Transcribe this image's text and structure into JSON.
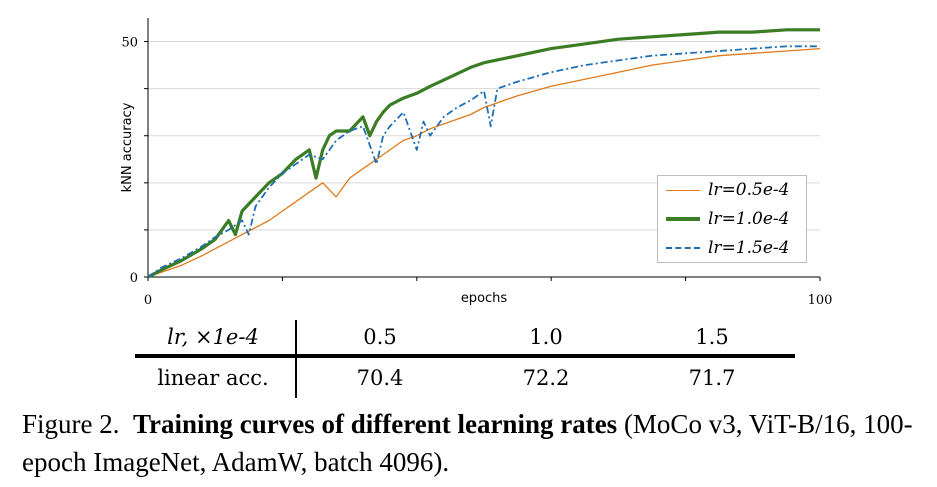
{
  "chart_data": {
    "type": "line",
    "ylabel": "kNN accuracy",
    "xlabel": "epochs",
    "x_ticks": [
      "0",
      "100"
    ],
    "y_ticks": [
      "0",
      "50"
    ],
    "xlim": [
      0,
      100
    ],
    "ylim": [
      0,
      55
    ],
    "grid": true,
    "legend_position": "lower-right",
    "series": [
      {
        "name": "lr=0.5e-4",
        "color": "#e07a1c",
        "style": "solid",
        "x": [
          0,
          2,
          5,
          8,
          10,
          12,
          14,
          16,
          18,
          20,
          22,
          24,
          26,
          28,
          30,
          32,
          34,
          36,
          38,
          40,
          42,
          45,
          48,
          50,
          55,
          60,
          65,
          70,
          75,
          80,
          85,
          90,
          95,
          100
        ],
        "y": [
          0,
          1,
          2.5,
          4.5,
          6,
          7.5,
          9,
          10.5,
          12,
          14,
          16,
          18,
          20,
          17,
          21,
          23,
          25,
          27,
          29,
          30,
          31.5,
          33,
          34.5,
          36,
          38.5,
          40.5,
          42,
          43.5,
          45,
          46,
          47,
          47.5,
          48,
          48.5
        ]
      },
      {
        "name": "lr=1.0e-4",
        "color": "#3a7d24",
        "style": "solid-thick",
        "x": [
          0,
          2,
          5,
          8,
          10,
          12,
          13,
          14,
          16,
          18,
          20,
          22,
          24,
          25,
          26,
          27,
          28,
          30,
          32,
          33,
          34,
          35,
          36,
          38,
          40,
          42,
          45,
          48,
          50,
          55,
          60,
          65,
          70,
          75,
          80,
          85,
          90,
          95,
          100
        ],
        "y": [
          0,
          1.5,
          3.5,
          6,
          8,
          12,
          9,
          14,
          17,
          20,
          22,
          25,
          27,
          21,
          27,
          30,
          31,
          31,
          34,
          30,
          33,
          35,
          36.5,
          38,
          39,
          40.5,
          42.5,
          44.5,
          45.5,
          47,
          48.5,
          49.5,
          50.5,
          51,
          51.5,
          52,
          52,
          52.5,
          52.5
        ]
      },
      {
        "name": "lr=1.5e-4",
        "color": "#1f6fb4",
        "style": "dash-dot",
        "x": [
          0,
          2,
          5,
          8,
          10,
          12,
          14,
          15,
          16,
          18,
          20,
          22,
          24,
          26,
          28,
          30,
          32,
          34,
          35,
          36,
          38,
          40,
          41,
          42,
          44,
          46,
          48,
          50,
          51,
          52,
          55,
          60,
          65,
          70,
          75,
          80,
          85,
          90,
          95,
          100
        ],
        "y": [
          0,
          2,
          4,
          6.5,
          8.5,
          10,
          12,
          9,
          15,
          19,
          22,
          24,
          26,
          25,
          29,
          31,
          32,
          24,
          30,
          32,
          35,
          27,
          33,
          30,
          34,
          36,
          37.5,
          39.5,
          32,
          40,
          41.5,
          43.5,
          45,
          46,
          47,
          47.5,
          48,
          48.5,
          49,
          49
        ]
      }
    ]
  },
  "table": {
    "header_label": "lr, ×1e-4",
    "header_values": [
      "0.5",
      "1.0",
      "1.5"
    ],
    "row_label": "linear acc.",
    "row_values": [
      "70.4",
      "72.2",
      "71.7"
    ]
  },
  "caption": {
    "prefix": "Figure 2.",
    "bold": "Training curves of different learning rates",
    "rest": " (MoCo v3, ViT-B/16, 100-epoch ImageNet, AdamW, batch 4096)."
  }
}
